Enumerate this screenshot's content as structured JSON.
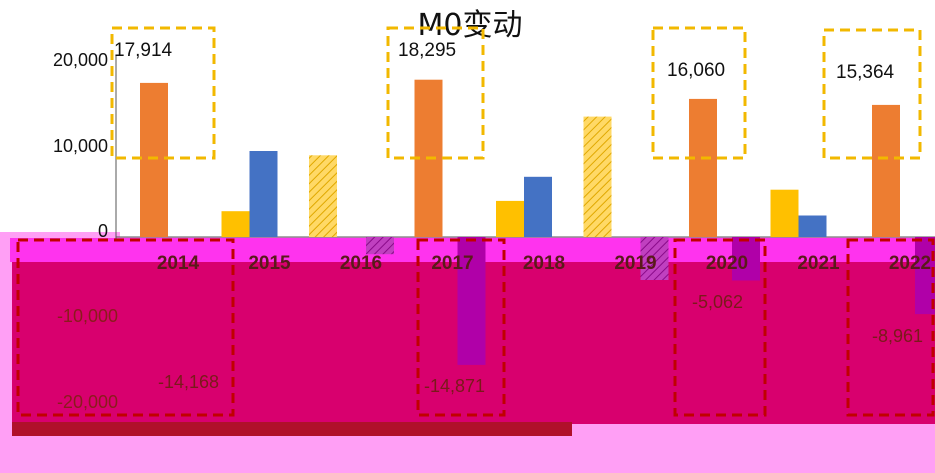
{
  "chart_data": {
    "type": "bar",
    "title": "M0变动",
    "categories": [
      "2014",
      "2015",
      "2016",
      "2017",
      "2018",
      "2019",
      "2020",
      "2021",
      "2022"
    ],
    "y_ticks_positive": [
      "20,000",
      "10,000",
      "0"
    ],
    "y_ticks_negative": [
      "-10,000",
      "-20,000"
    ],
    "ylim": [
      -25000,
      22000
    ],
    "series": [
      {
        "color": "#ED7D31",
        "values": [
          17914,
          null,
          null,
          18295,
          null,
          null,
          16060,
          null,
          15364
        ]
      },
      {
        "color": "#FFC000",
        "values": [
          null,
          3000,
          null,
          null,
          4200,
          null,
          null,
          5500,
          null
        ]
      },
      {
        "color": "#4472C4",
        "values": [
          null,
          10000,
          null,
          null,
          7000,
          null,
          null,
          2500,
          null
        ]
      },
      {
        "color": "#B000A8",
        "values": [
          null,
          null,
          -2000,
          -14871,
          null,
          -5000,
          -5062,
          null,
          -8961
        ],
        "note_labels": "-14,168"
      },
      {
        "color": "#FFC000",
        "hatched": true,
        "values": [
          null,
          null,
          9500,
          null,
          null,
          14000,
          null,
          null,
          null
        ]
      }
    ],
    "highlighted_labels": [
      "17,914",
      "18,295",
      "16,060",
      "15,364"
    ],
    "negative_labels": [
      "-14,168",
      "-14,871",
      "-5,062",
      "-8,961"
    ]
  }
}
